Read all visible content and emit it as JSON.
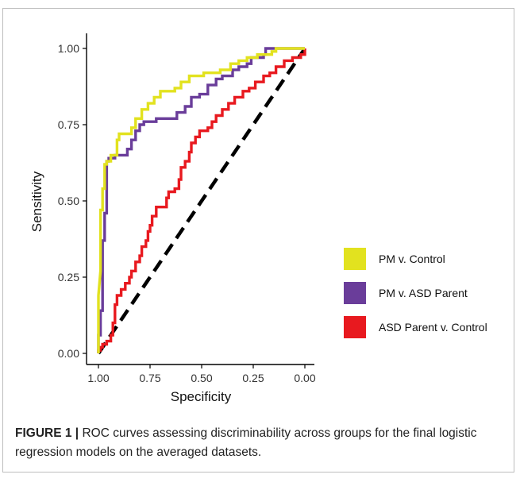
{
  "figure": {
    "label": "FIGURE 1",
    "separator": "|",
    "caption": "ROC curves assessing discriminability across groups for the final logistic regression models on the averaged datasets."
  },
  "chart_data": {
    "type": "line",
    "xlabel": "Specificity",
    "ylabel": "Sensitivity",
    "xlim": [
      1.0,
      0.0
    ],
    "ylim": [
      0.0,
      1.0
    ],
    "x_reversed": true,
    "xticks": [
      "1.00",
      "0.75",
      "0.50",
      "0.25",
      "0.00"
    ],
    "yticks": [
      "0.00",
      "0.25",
      "0.50",
      "0.75",
      "1.00"
    ],
    "grid": false,
    "legend_position": "right",
    "series": [
      {
        "name": "PM v. Control",
        "color": "#e2e21f",
        "points": [
          [
            1.0,
            0.0
          ],
          [
            1.0,
            0.19
          ],
          [
            0.99,
            0.27
          ],
          [
            0.99,
            0.47
          ],
          [
            0.98,
            0.47
          ],
          [
            0.98,
            0.54
          ],
          [
            0.97,
            0.54
          ],
          [
            0.97,
            0.62
          ],
          [
            0.96,
            0.62
          ],
          [
            0.96,
            0.63
          ],
          [
            0.94,
            0.63
          ],
          [
            0.94,
            0.65
          ],
          [
            0.91,
            0.65
          ],
          [
            0.91,
            0.7
          ],
          [
            0.9,
            0.7
          ],
          [
            0.9,
            0.72
          ],
          [
            0.84,
            0.72
          ],
          [
            0.84,
            0.74
          ],
          [
            0.82,
            0.74
          ],
          [
            0.82,
            0.77
          ],
          [
            0.79,
            0.77
          ],
          [
            0.79,
            0.8
          ],
          [
            0.76,
            0.8
          ],
          [
            0.76,
            0.82
          ],
          [
            0.73,
            0.82
          ],
          [
            0.73,
            0.84
          ],
          [
            0.7,
            0.84
          ],
          [
            0.7,
            0.86
          ],
          [
            0.63,
            0.86
          ],
          [
            0.63,
            0.87
          ],
          [
            0.6,
            0.87
          ],
          [
            0.6,
            0.89
          ],
          [
            0.56,
            0.89
          ],
          [
            0.56,
            0.91
          ],
          [
            0.49,
            0.91
          ],
          [
            0.49,
            0.92
          ],
          [
            0.41,
            0.92
          ],
          [
            0.41,
            0.93
          ],
          [
            0.36,
            0.93
          ],
          [
            0.36,
            0.95
          ],
          [
            0.32,
            0.95
          ],
          [
            0.32,
            0.96
          ],
          [
            0.28,
            0.96
          ],
          [
            0.28,
            0.97
          ],
          [
            0.23,
            0.97
          ],
          [
            0.23,
            0.98
          ],
          [
            0.16,
            0.98
          ],
          [
            0.16,
            0.99
          ],
          [
            0.14,
            0.99
          ],
          [
            0.14,
            1.0
          ],
          [
            0.0,
            1.0
          ]
        ]
      },
      {
        "name": "PM v. ASD Parent",
        "color": "#6a3d9a",
        "points": [
          [
            1.0,
            0.0
          ],
          [
            1.0,
            0.06
          ],
          [
            0.99,
            0.06
          ],
          [
            0.99,
            0.14
          ],
          [
            0.98,
            0.14
          ],
          [
            0.98,
            0.37
          ],
          [
            0.97,
            0.37
          ],
          [
            0.97,
            0.46
          ],
          [
            0.96,
            0.46
          ],
          [
            0.96,
            0.63
          ],
          [
            0.95,
            0.63
          ],
          [
            0.95,
            0.64
          ],
          [
            0.92,
            0.64
          ],
          [
            0.92,
            0.65
          ],
          [
            0.86,
            0.65
          ],
          [
            0.86,
            0.67
          ],
          [
            0.84,
            0.67
          ],
          [
            0.84,
            0.7
          ],
          [
            0.82,
            0.7
          ],
          [
            0.82,
            0.73
          ],
          [
            0.8,
            0.73
          ],
          [
            0.8,
            0.75
          ],
          [
            0.78,
            0.75
          ],
          [
            0.78,
            0.76
          ],
          [
            0.72,
            0.76
          ],
          [
            0.72,
            0.77
          ],
          [
            0.62,
            0.77
          ],
          [
            0.62,
            0.79
          ],
          [
            0.58,
            0.79
          ],
          [
            0.58,
            0.81
          ],
          [
            0.55,
            0.81
          ],
          [
            0.55,
            0.84
          ],
          [
            0.51,
            0.84
          ],
          [
            0.51,
            0.85
          ],
          [
            0.47,
            0.85
          ],
          [
            0.47,
            0.88
          ],
          [
            0.43,
            0.88
          ],
          [
            0.43,
            0.9
          ],
          [
            0.4,
            0.9
          ],
          [
            0.4,
            0.91
          ],
          [
            0.35,
            0.91
          ],
          [
            0.35,
            0.93
          ],
          [
            0.32,
            0.93
          ],
          [
            0.32,
            0.94
          ],
          [
            0.28,
            0.94
          ],
          [
            0.28,
            0.95
          ],
          [
            0.26,
            0.95
          ],
          [
            0.26,
            0.97
          ],
          [
            0.2,
            0.97
          ],
          [
            0.2,
            0.98
          ],
          [
            0.19,
            0.98
          ],
          [
            0.19,
            1.0
          ],
          [
            0.0,
            1.0
          ]
        ]
      },
      {
        "name": "ASD Parent v. Control",
        "color": "#e8191f",
        "points": [
          [
            1.0,
            0.0
          ],
          [
            1.0,
            0.01
          ],
          [
            0.99,
            0.01
          ],
          [
            0.99,
            0.02
          ],
          [
            0.98,
            0.02
          ],
          [
            0.98,
            0.03
          ],
          [
            0.96,
            0.03
          ],
          [
            0.96,
            0.04
          ],
          [
            0.94,
            0.04
          ],
          [
            0.94,
            0.06
          ],
          [
            0.93,
            0.06
          ],
          [
            0.93,
            0.1
          ],
          [
            0.92,
            0.1
          ],
          [
            0.92,
            0.16
          ],
          [
            0.91,
            0.16
          ],
          [
            0.91,
            0.19
          ],
          [
            0.89,
            0.19
          ],
          [
            0.89,
            0.21
          ],
          [
            0.87,
            0.21
          ],
          [
            0.87,
            0.23
          ],
          [
            0.85,
            0.23
          ],
          [
            0.85,
            0.25
          ],
          [
            0.84,
            0.25
          ],
          [
            0.84,
            0.27
          ],
          [
            0.82,
            0.27
          ],
          [
            0.82,
            0.3
          ],
          [
            0.8,
            0.3
          ],
          [
            0.8,
            0.32
          ],
          [
            0.79,
            0.32
          ],
          [
            0.79,
            0.35
          ],
          [
            0.77,
            0.35
          ],
          [
            0.77,
            0.37
          ],
          [
            0.76,
            0.37
          ],
          [
            0.76,
            0.4
          ],
          [
            0.75,
            0.4
          ],
          [
            0.75,
            0.42
          ],
          [
            0.74,
            0.42
          ],
          [
            0.74,
            0.45
          ],
          [
            0.72,
            0.45
          ],
          [
            0.72,
            0.48
          ],
          [
            0.67,
            0.48
          ],
          [
            0.67,
            0.51
          ],
          [
            0.66,
            0.51
          ],
          [
            0.66,
            0.53
          ],
          [
            0.63,
            0.53
          ],
          [
            0.63,
            0.54
          ],
          [
            0.61,
            0.54
          ],
          [
            0.61,
            0.57
          ],
          [
            0.6,
            0.57
          ],
          [
            0.6,
            0.61
          ],
          [
            0.58,
            0.61
          ],
          [
            0.58,
            0.63
          ],
          [
            0.56,
            0.63
          ],
          [
            0.56,
            0.66
          ],
          [
            0.55,
            0.66
          ],
          [
            0.55,
            0.69
          ],
          [
            0.53,
            0.69
          ],
          [
            0.53,
            0.71
          ],
          [
            0.51,
            0.71
          ],
          [
            0.51,
            0.73
          ],
          [
            0.47,
            0.73
          ],
          [
            0.47,
            0.74
          ],
          [
            0.45,
            0.74
          ],
          [
            0.45,
            0.76
          ],
          [
            0.43,
            0.76
          ],
          [
            0.43,
            0.78
          ],
          [
            0.4,
            0.78
          ],
          [
            0.4,
            0.8
          ],
          [
            0.37,
            0.8
          ],
          [
            0.37,
            0.82
          ],
          [
            0.34,
            0.82
          ],
          [
            0.34,
            0.84
          ],
          [
            0.3,
            0.84
          ],
          [
            0.3,
            0.86
          ],
          [
            0.27,
            0.86
          ],
          [
            0.27,
            0.87
          ],
          [
            0.24,
            0.87
          ],
          [
            0.24,
            0.89
          ],
          [
            0.2,
            0.89
          ],
          [
            0.2,
            0.91
          ],
          [
            0.17,
            0.91
          ],
          [
            0.17,
            0.92
          ],
          [
            0.14,
            0.92
          ],
          [
            0.14,
            0.94
          ],
          [
            0.1,
            0.94
          ],
          [
            0.1,
            0.96
          ],
          [
            0.06,
            0.96
          ],
          [
            0.06,
            0.97
          ],
          [
            0.02,
            0.97
          ],
          [
            0.02,
            0.98
          ],
          [
            0.0,
            0.98
          ],
          [
            0.0,
            1.0
          ]
        ]
      }
    ],
    "reference_line": {
      "style": "dashed",
      "color": "#000000",
      "from": [
        1.0,
        0.0
      ],
      "to": [
        0.0,
        1.0
      ]
    }
  }
}
